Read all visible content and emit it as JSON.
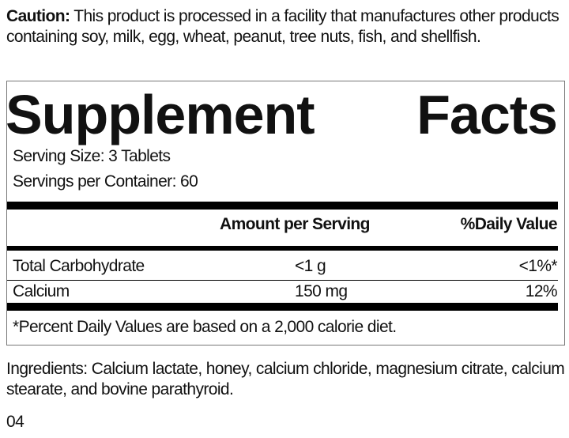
{
  "caution": {
    "label": "Caution:",
    "text": " This product is processed in a facility that manufactures other products containing soy, milk, egg, wheat, peanut, tree nuts, fish, and shellfish."
  },
  "facts": {
    "title_word1": "Supplement",
    "title_word2": "Facts",
    "serving_size": "Serving Size: 3 Tablets",
    "servings_per_container": "Servings per Container: 60",
    "header": {
      "amount": "Amount per Serving",
      "dv": "%Daily Value"
    },
    "rows": [
      {
        "name": "Total Carbohydrate",
        "amount": "<1 g",
        "dv": "<1%*"
      },
      {
        "name": "Calcium",
        "amount": "150 mg",
        "dv": "12%"
      }
    ],
    "footnote": "*Percent Daily Values are based on a 2,000 calorie diet."
  },
  "ingredients": "Ingredients: Calcium lactate, honey, calcium chloride, magnesium citrate, calcium stearate, and bovine parathyroid.",
  "code": "04"
}
